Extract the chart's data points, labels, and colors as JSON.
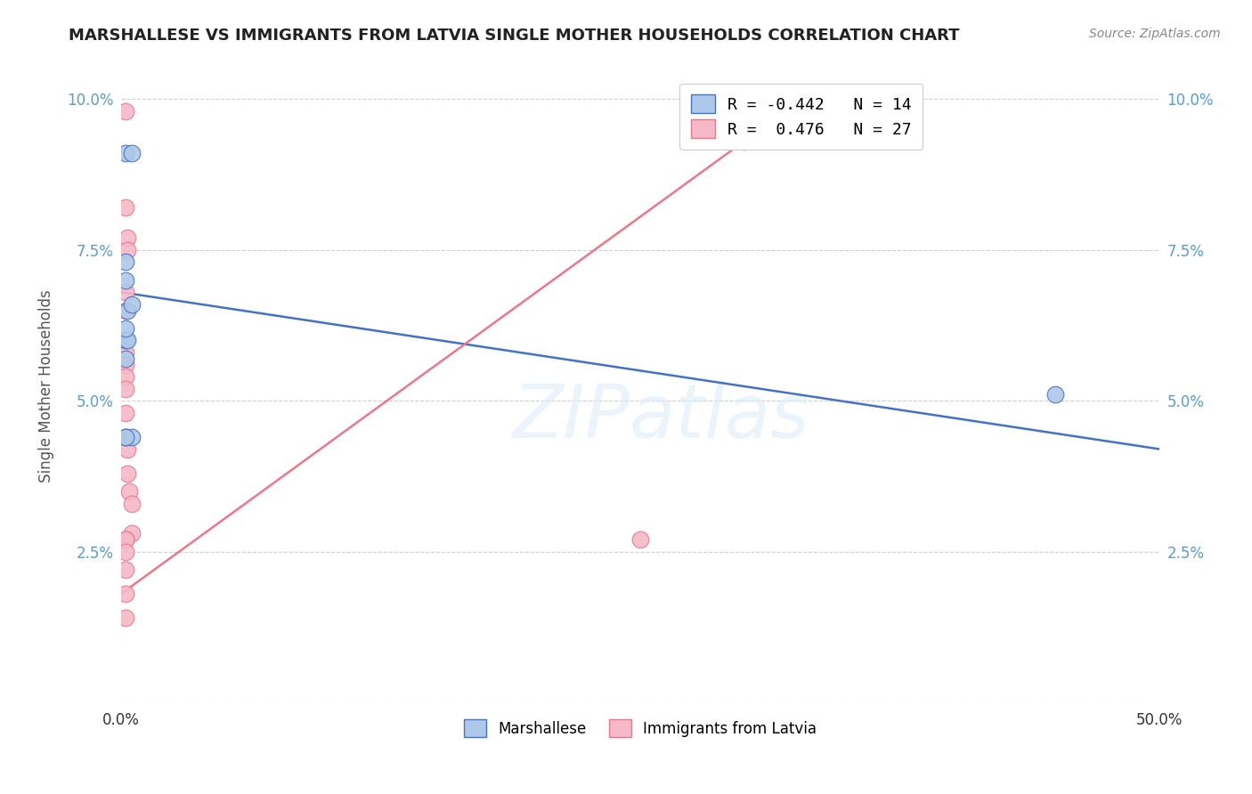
{
  "title": "MARSHALLESE VS IMMIGRANTS FROM LATVIA SINGLE MOTHER HOUSEHOLDS CORRELATION CHART",
  "source": "Source: ZipAtlas.com",
  "ylabel": "Single Mother Households",
  "xmin": 0.0,
  "xmax": 0.5,
  "ymin": 0.0,
  "ymax": 0.105,
  "yticks": [
    0.0,
    0.025,
    0.05,
    0.075,
    0.1
  ],
  "ytick_labels": [
    "",
    "2.5%",
    "5.0%",
    "7.5%",
    "10.0%"
  ],
  "xtick_positions": [
    0.0,
    0.5
  ],
  "xtick_labels": [
    "0.0%",
    "50.0%"
  ],
  "blue_label": "Marshallese",
  "pink_label": "Immigrants from Latvia",
  "blue_R": "-0.442",
  "blue_N": "14",
  "pink_R": " 0.476",
  "pink_N": "27",
  "blue_color": "#adc8e8",
  "pink_color": "#f5b8c8",
  "blue_edge_color": "#4472c4",
  "pink_edge_color": "#e8788a",
  "blue_line_color": "#4472c4",
  "pink_line_color": "#e8788a",
  "watermark": "ZIPatlas",
  "blue_points_x": [
    0.002,
    0.005,
    0.002,
    0.002,
    0.003,
    0.005,
    0.002,
    0.003,
    0.002,
    0.005,
    0.002,
    0.002,
    0.002,
    0.45
  ],
  "blue_points_y": [
    0.091,
    0.091,
    0.073,
    0.07,
    0.065,
    0.066,
    0.06,
    0.06,
    0.044,
    0.044,
    0.062,
    0.057,
    0.044,
    0.051
  ],
  "pink_points_x": [
    0.002,
    0.002,
    0.003,
    0.003,
    0.002,
    0.002,
    0.002,
    0.002,
    0.002,
    0.002,
    0.002,
    0.002,
    0.002,
    0.003,
    0.003,
    0.004,
    0.005,
    0.005,
    0.002,
    0.002,
    0.002,
    0.002,
    0.002,
    0.002,
    0.002,
    0.25,
    0.3
  ],
  "pink_points_y": [
    0.098,
    0.082,
    0.077,
    0.075,
    0.068,
    0.065,
    0.06,
    0.058,
    0.056,
    0.054,
    0.052,
    0.048,
    0.044,
    0.042,
    0.038,
    0.035,
    0.033,
    0.028,
    0.027,
    0.027,
    0.022,
    0.018,
    0.014,
    0.027,
    0.025,
    0.027,
    0.093
  ],
  "blue_trend_x": [
    0.0,
    0.5
  ],
  "blue_trend_y": [
    0.068,
    0.042
  ],
  "pink_trend_x": [
    0.0,
    0.32
  ],
  "pink_trend_y": [
    0.018,
    0.098
  ]
}
